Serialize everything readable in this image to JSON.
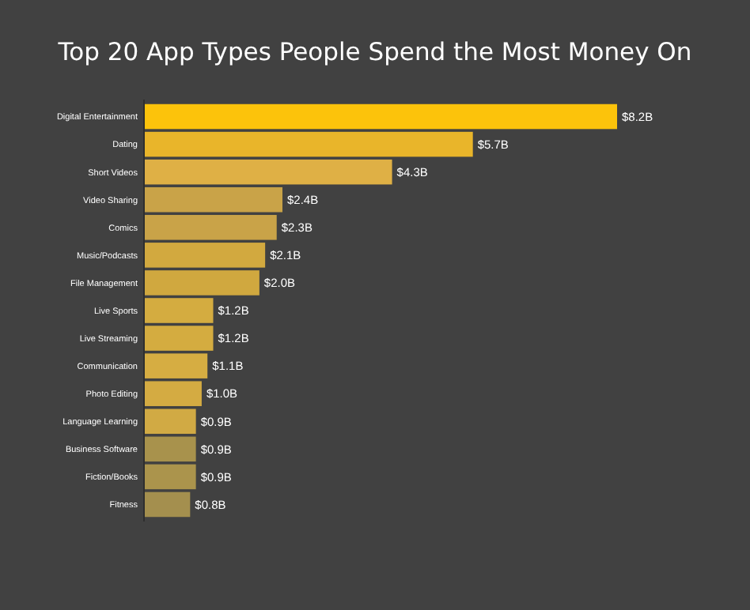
{
  "chart_data": {
    "type": "bar",
    "orientation": "horizontal",
    "title": "Top 20 App Types People Spend the Most Money On",
    "categories": [
      "Digital Entertainment",
      "Dating",
      "Short Videos",
      "Video Sharing",
      "Comics",
      "Music/Podcasts",
      "File Management",
      "Live Sports",
      "Live Streaming",
      "Communication",
      "Photo Editing",
      "Language Learning",
      "Business Software",
      "Fiction/Books",
      "Fitness"
    ],
    "values": [
      8.2,
      5.7,
      4.3,
      2.4,
      2.3,
      2.1,
      2.0,
      1.2,
      1.2,
      1.1,
      1.0,
      0.9,
      0.9,
      0.9,
      0.8
    ],
    "value_labels": [
      "$8.2B",
      "$5.7B",
      "$4.3B",
      "$2.4B",
      "$2.3B",
      "$2.1B",
      "$2.0B",
      "$1.2B",
      "$1.2B",
      "$1.1B",
      "$1.0B",
      "$0.9B",
      "$0.9B",
      "$0.9B",
      "$0.8B"
    ],
    "colors": [
      "#fcc30b",
      "#e9b52a",
      "#dfb045",
      "#c9a348",
      "#c9a348",
      "#d2a93f",
      "#d0a83f",
      "#d4ac40",
      "#d4ac40",
      "#d6ad42",
      "#d4ab42",
      "#d1aa44",
      "#a8924c",
      "#ab944c",
      "#a48f4e"
    ]
  }
}
